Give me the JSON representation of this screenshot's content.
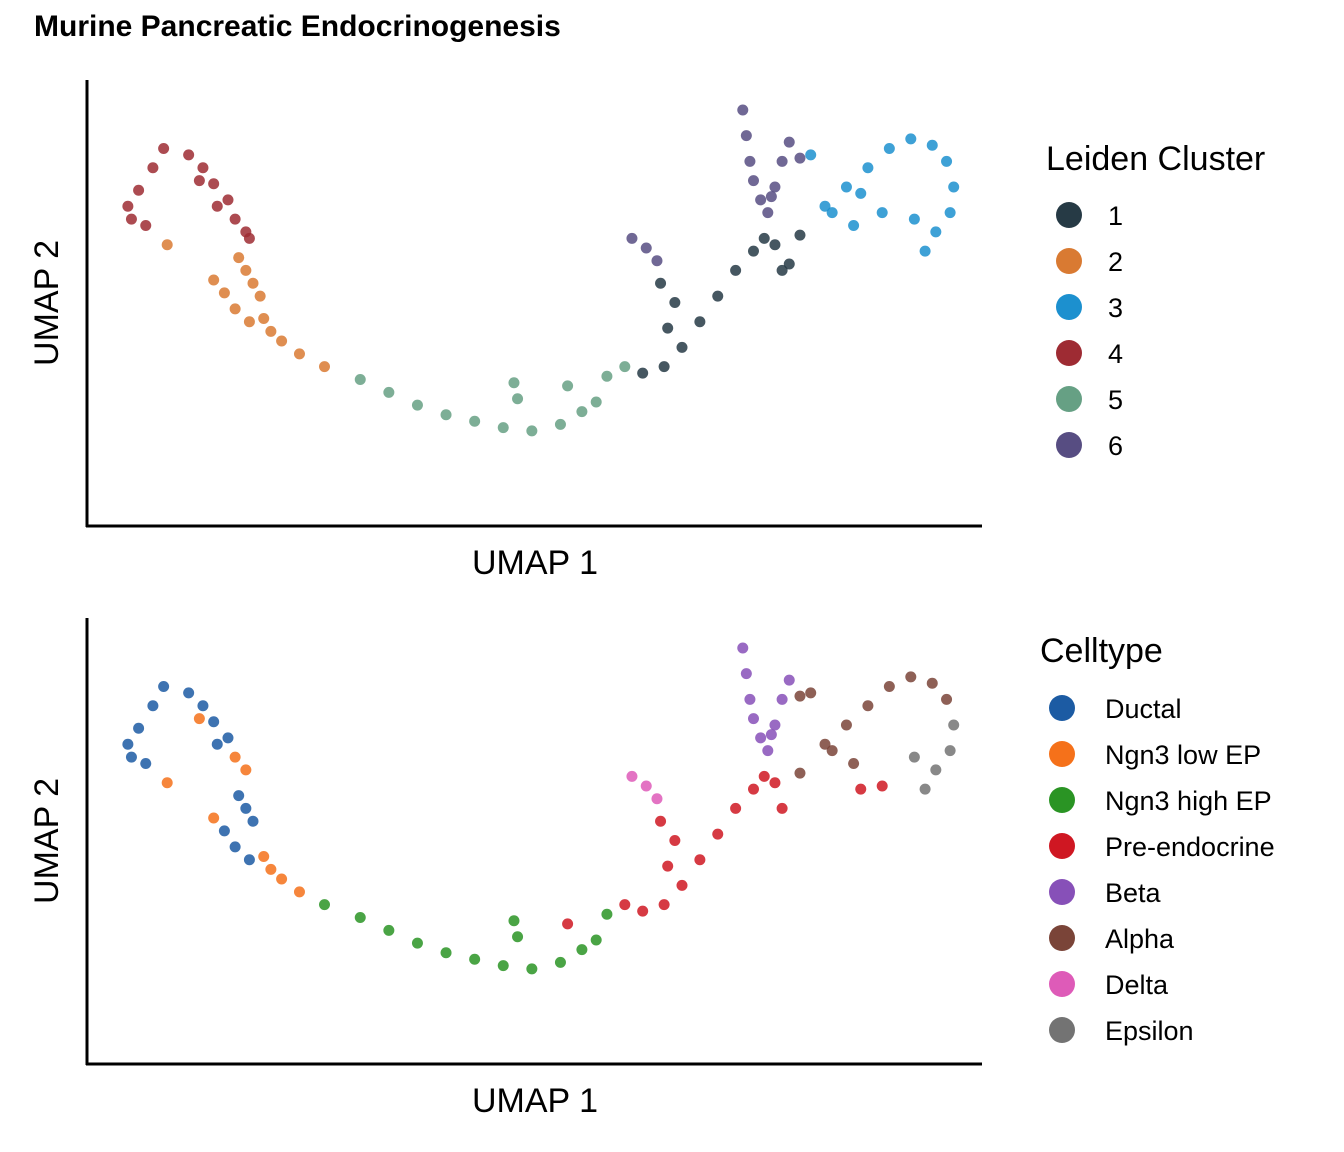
{
  "title": "Murine Pancreatic Endocrinogenesis",
  "chart_data": [
    {
      "type": "scatter",
      "xlabel": "UMAP 1",
      "ylabel": "UMAP 2",
      "grid": false,
      "legend_position": "right",
      "legend": {
        "title": "Leiden Cluster",
        "entries": [
          {
            "label": "1",
            "color": "#263a45"
          },
          {
            "label": "2",
            "color": "#d97a32"
          },
          {
            "label": "3",
            "color": "#1c90cf"
          },
          {
            "label": "4",
            "color": "#9e2b33"
          },
          {
            "label": "5",
            "color": "#66a084"
          },
          {
            "label": "6",
            "color": "#574d82"
          }
        ]
      },
      "series": [
        {
          "name": "4",
          "color": "#9e2b33",
          "x": [
            0.5,
            0.8,
            1.2,
            1.5,
            2.2,
            2.6,
            2.9,
            3.3,
            3.5,
            3.8,
            0.6,
            1.0,
            3.0,
            2.5,
            3.9
          ],
          "y": [
            9.0,
            9.5,
            10.2,
            10.8,
            10.6,
            10.2,
            9.7,
            9.2,
            8.6,
            8.2,
            8.6,
            8.4,
            9.0,
            9.8,
            8.0
          ]
        },
        {
          "name": "2",
          "color": "#d97a32",
          "x": [
            3.6,
            3.8,
            4.0,
            4.2,
            3.2,
            3.5,
            3.9,
            4.3,
            4.5,
            4.8,
            5.3,
            6.0,
            1.6,
            2.9
          ],
          "y": [
            7.4,
            7.0,
            6.6,
            6.2,
            6.3,
            5.8,
            5.4,
            5.5,
            5.1,
            4.8,
            4.4,
            4.0,
            7.8,
            6.7
          ]
        },
        {
          "name": "5",
          "color": "#66a084",
          "x": [
            7.0,
            7.8,
            8.6,
            9.4,
            10.2,
            11.0,
            11.8,
            12.6,
            13.2,
            13.6,
            12.8,
            11.3,
            11.4,
            13.9,
            14.4
          ],
          "y": [
            3.6,
            3.2,
            2.8,
            2.5,
            2.3,
            2.1,
            2.0,
            2.2,
            2.6,
            2.9,
            3.4,
            3.5,
            3.0,
            3.7,
            4.0
          ]
        },
        {
          "name": "1",
          "color": "#263a45",
          "x": [
            15.5,
            16.0,
            16.5,
            17.0,
            17.5,
            18.0,
            18.3,
            18.6,
            18.8,
            15.6,
            15.8,
            15.4,
            19.3,
            19.0,
            14.9
          ],
          "y": [
            4.0,
            4.6,
            5.4,
            6.2,
            7.0,
            7.6,
            8.0,
            7.8,
            7.0,
            5.2,
            6.0,
            6.6,
            8.1,
            7.2,
            3.8
          ]
        },
        {
          "name": "6",
          "color": "#574d82",
          "x": [
            17.7,
            17.8,
            17.9,
            18.0,
            18.2,
            18.4,
            18.6,
            18.8,
            19.0,
            14.6,
            15.0,
            15.3,
            18.5,
            19.3
          ],
          "y": [
            12.0,
            11.2,
            10.4,
            9.8,
            9.2,
            8.8,
            9.6,
            10.4,
            11.0,
            8.0,
            7.7,
            7.3,
            9.3,
            10.5
          ]
        },
        {
          "name": "3",
          "color": "#1c90cf",
          "x": [
            20.0,
            20.6,
            21.2,
            21.8,
            22.4,
            23.0,
            23.4,
            23.6,
            23.5,
            23.1,
            22.5,
            21.6,
            20.8,
            20.2,
            21.0,
            22.8,
            19.6
          ],
          "y": [
            9.0,
            9.6,
            10.2,
            10.8,
            11.1,
            10.9,
            10.4,
            9.6,
            8.8,
            8.2,
            8.6,
            8.8,
            8.4,
            8.8,
            9.4,
            7.6,
            10.6
          ]
        }
      ]
    },
    {
      "type": "scatter",
      "xlabel": "UMAP 1",
      "ylabel": "UMAP 2",
      "grid": false,
      "legend_position": "right",
      "legend": {
        "title": "Celltype",
        "entries": [
          {
            "label": "Ductal",
            "color": "#1c5ba3"
          },
          {
            "label": "Ngn3 low EP",
            "color": "#f5711a"
          },
          {
            "label": "Ngn3 high EP",
            "color": "#2a9424"
          },
          {
            "label": "Pre-endocrine",
            "color": "#cf1722"
          },
          {
            "label": "Beta",
            "color": "#8750b8"
          },
          {
            "label": "Alpha",
            "color": "#7a4438"
          },
          {
            "label": "Delta",
            "color": "#de5bb8"
          },
          {
            "label": "Epsilon",
            "color": "#737373"
          }
        ]
      },
      "series": [
        {
          "name": "Ductal",
          "color": "#1c5ba3",
          "x": [
            0.5,
            0.8,
            1.2,
            1.5,
            2.2,
            2.6,
            2.9,
            3.3,
            3.6,
            3.8,
            4.0,
            3.2,
            3.5,
            3.9,
            0.6,
            1.0,
            3.0
          ],
          "y": [
            9.0,
            9.5,
            10.2,
            10.8,
            10.6,
            10.2,
            9.7,
            9.2,
            7.4,
            7.0,
            6.6,
            6.3,
            5.8,
            5.4,
            8.6,
            8.4,
            9.0
          ]
        },
        {
          "name": "Ngn3 low EP",
          "color": "#f5711a",
          "x": [
            2.5,
            3.5,
            4.3,
            4.5,
            4.8,
            5.3,
            1.6,
            2.9,
            3.8
          ],
          "y": [
            9.8,
            8.6,
            5.5,
            5.1,
            4.8,
            4.4,
            7.8,
            6.7,
            8.2
          ]
        },
        {
          "name": "Ngn3 high EP",
          "color": "#2a9424",
          "x": [
            6.0,
            7.0,
            7.8,
            8.6,
            9.4,
            10.2,
            11.0,
            11.8,
            12.6,
            13.2,
            13.6,
            11.3,
            11.4,
            13.9
          ],
          "y": [
            4.0,
            3.6,
            3.2,
            2.8,
            2.5,
            2.3,
            2.1,
            2.0,
            2.2,
            2.6,
            2.9,
            3.5,
            3.0,
            3.7
          ]
        },
        {
          "name": "Pre-endocrine",
          "color": "#cf1722",
          "x": [
            12.8,
            14.4,
            14.9,
            15.5,
            16.0,
            16.5,
            17.0,
            17.5,
            18.0,
            18.3,
            18.6,
            18.8,
            15.6,
            15.8,
            15.4,
            21.0,
            21.6
          ],
          "y": [
            3.4,
            4.0,
            3.8,
            4.0,
            4.6,
            5.4,
            6.2,
            7.0,
            7.6,
            8.0,
            7.8,
            7.0,
            5.2,
            6.0,
            6.6,
            7.6,
            7.7
          ]
        },
        {
          "name": "Beta",
          "color": "#8750b8",
          "x": [
            17.7,
            17.8,
            17.9,
            18.0,
            18.2,
            18.4,
            18.6,
            18.8,
            19.0,
            18.5
          ],
          "y": [
            12.0,
            11.2,
            10.4,
            9.8,
            9.2,
            8.8,
            9.6,
            10.4,
            11.0,
            9.3
          ]
        },
        {
          "name": "Alpha",
          "color": "#7a4438",
          "x": [
            19.3,
            19.6,
            20.0,
            20.6,
            21.2,
            21.8,
            22.4,
            23.0,
            23.4,
            19.3,
            20.2,
            20.8
          ],
          "y": [
            8.1,
            10.6,
            9.0,
            9.6,
            10.2,
            10.8,
            11.1,
            10.9,
            10.4,
            10.5,
            8.8,
            8.4
          ]
        },
        {
          "name": "Delta",
          "color": "#de5bb8",
          "x": [
            14.6,
            15.0,
            15.3
          ],
          "y": [
            8.0,
            7.7,
            7.3
          ]
        },
        {
          "name": "Epsilon",
          "color": "#737373",
          "x": [
            23.6,
            23.5,
            23.1,
            22.5,
            22.8
          ],
          "y": [
            9.6,
            8.8,
            8.2,
            8.6,
            7.6
          ]
        }
      ]
    }
  ]
}
